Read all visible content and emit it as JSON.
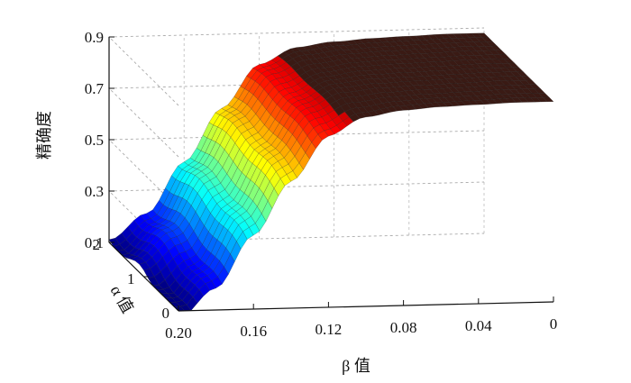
{
  "chart_data": {
    "type": "surface3d",
    "title": "",
    "zlabel": "精确度",
    "xlabel": "β 值",
    "ylabel": "α 值",
    "x_ticks": [
      "0.20",
      "0.16",
      "0.12",
      "0.08",
      "0.04",
      "0"
    ],
    "y_ticks": [
      "0",
      "1",
      "2"
    ],
    "z_ticks": [
      "0.1",
      "0.3",
      "0.5",
      "0.7",
      "0.9"
    ],
    "xlim": [
      0.2,
      0
    ],
    "ylim": [
      0,
      2
    ],
    "zlim": [
      0.1,
      0.9
    ],
    "colormap": "jet",
    "grid": true,
    "x": [
      0.2,
      0.18,
      0.16,
      0.14,
      0.12,
      0.1,
      0.08,
      0.06,
      0.04,
      0.02,
      0.0
    ],
    "profile": [
      0.11,
      0.22,
      0.42,
      0.62,
      0.78,
      0.84,
      0.86,
      0.87,
      0.875,
      0.88,
      0.88
    ]
  }
}
